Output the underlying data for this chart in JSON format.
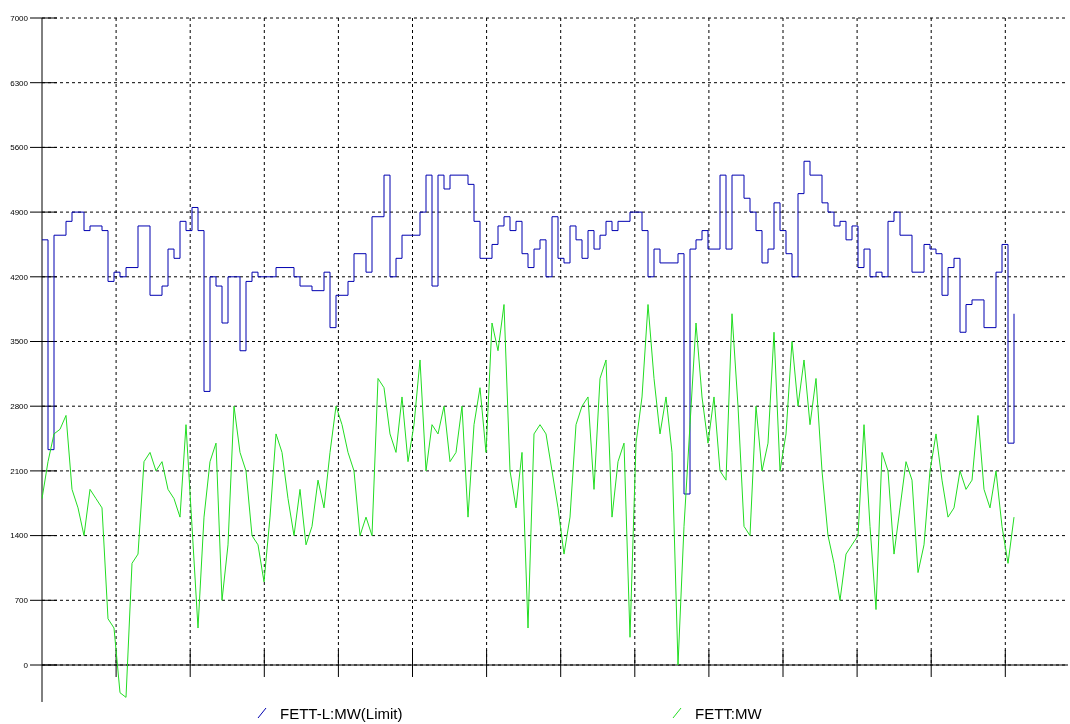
{
  "chart_data": {
    "type": "line",
    "ylim": [
      -400,
      7000
    ],
    "yticks": [
      0,
      700,
      1400,
      2100,
      2800,
      3500,
      4200,
      4900,
      5600,
      6300,
      7000
    ],
    "categories": [
      null,
      null,
      null,
      null,
      null,
      null,
      null,
      null,
      null,
      null,
      null,
      null,
      null,
      null,
      null,
      null,
      null,
      null,
      null,
      null,
      null,
      null,
      null,
      null,
      null,
      null,
      null,
      null,
      null,
      null,
      null,
      null,
      null,
      null,
      null,
      null,
      null,
      null,
      null,
      null,
      null,
      null,
      null,
      null,
      null,
      null,
      null,
      null,
      null,
      null,
      null,
      null,
      null,
      null,
      null,
      null,
      null,
      null,
      null,
      null,
      null,
      null,
      null,
      null,
      null,
      null,
      null,
      null,
      null,
      null,
      null,
      null,
      null,
      null,
      null,
      null,
      null,
      null,
      null,
      null,
      null,
      null,
      null,
      null,
      null,
      null,
      null,
      null,
      null,
      null,
      null,
      null,
      null,
      null,
      null,
      null,
      null,
      null,
      null,
      null,
      null,
      null,
      null,
      null,
      null,
      null,
      null,
      null,
      null,
      null,
      null,
      null,
      null,
      null,
      null,
      null,
      null,
      null,
      null,
      null,
      null,
      null,
      null,
      null,
      null,
      null,
      null,
      null,
      null,
      null,
      null,
      null,
      null,
      null,
      null,
      null,
      null,
      null,
      null,
      null,
      null,
      null,
      null,
      null,
      null,
      null,
      null,
      null,
      null,
      null,
      null,
      null,
      null,
      null,
      null,
      null,
      null,
      null,
      null,
      null,
      null,
      null,
      null
    ],
    "tick_labels": "y",
    "grid": true,
    "legend": "bottom",
    "marker": "none",
    "line_style": "solid",
    "series": [
      {
        "name": "FETT-L:MW(Limit)",
        "type": "step",
        "color": "#0000b0",
        "values": [
          4600,
          2330,
          4650,
          4650,
          4800,
          4900,
          4900,
          4700,
          4750,
          4750,
          4700,
          4150,
          4250,
          4200,
          4300,
          4300,
          4750,
          4750,
          4000,
          4000,
          4100,
          4500,
          4400,
          4800,
          4700,
          4950,
          4700,
          2960,
          4200,
          4100,
          3700,
          4200,
          4200,
          3400,
          4150,
          4250,
          4200,
          4200,
          4200,
          4300,
          4300,
          4300,
          4200,
          4100,
          4100,
          4050,
          4050,
          4250,
          3650,
          4000,
          4000,
          4150,
          4450,
          4450,
          4250,
          4850,
          4850,
          5300,
          4200,
          4400,
          4650,
          4650,
          4650,
          4900,
          5300,
          4100,
          5300,
          5150,
          5300,
          5300,
          5300,
          5200,
          4800,
          4400,
          4400,
          4550,
          4750,
          4850,
          4700,
          4800,
          4450,
          4300,
          4500,
          4600,
          4200,
          4850,
          4400,
          4350,
          4750,
          4600,
          4400,
          4700,
          4500,
          4650,
          4800,
          4700,
          4800,
          4800,
          4900,
          4900,
          4700,
          4200,
          4500,
          4350,
          4350,
          4350,
          4450,
          1850,
          4500,
          4600,
          4700,
          4500,
          4500,
          5300,
          4500,
          5300,
          5300,
          5050,
          4900,
          4700,
          4350,
          4500,
          5000,
          4700,
          4450,
          4200,
          5100,
          5450,
          5300,
          5300,
          5000,
          4900,
          4750,
          4800,
          4600,
          4750,
          4300,
          4500,
          4200,
          4250,
          4200,
          4800,
          4900,
          4650,
          4650,
          4250,
          4250,
          4550,
          4500,
          4450,
          4000,
          4300,
          4400,
          3600,
          3900,
          3950,
          3950,
          3650,
          3650,
          4250,
          4550,
          2400,
          3800
        ]
      },
      {
        "name": "FETT:MW",
        "type": "line",
        "color": "#22dd22",
        "values": [
          1800,
          2200,
          2500,
          2550,
          2700,
          1900,
          1700,
          1400,
          1900,
          1800,
          1700,
          500,
          400,
          -300,
          -350,
          1100,
          1200,
          2200,
          2300,
          2100,
          2200,
          1900,
          1800,
          1600,
          2600,
          1500,
          400,
          1600,
          2200,
          2400,
          700,
          1300,
          2800,
          2300,
          2100,
          1400,
          1300,
          900,
          1600,
          2500,
          2300,
          1800,
          1400,
          1900,
          1300,
          1500,
          2000,
          1700,
          2300,
          2800,
          2600,
          2300,
          2100,
          1400,
          1600,
          1400,
          3100,
          3000,
          2500,
          2300,
          2900,
          2200,
          2600,
          3300,
          2100,
          2600,
          2500,
          2800,
          2200,
          2300,
          2800,
          1600,
          2600,
          3000,
          2300,
          3700,
          3400,
          3900,
          2100,
          1700,
          2300,
          400,
          2500,
          2600,
          2500,
          2100,
          1700,
          1200,
          1600,
          2600,
          2800,
          2900,
          1900,
          3100,
          3300,
          1600,
          2200,
          2400,
          300,
          2400,
          2900,
          3900,
          3100,
          2500,
          2900,
          2300,
          0,
          1500,
          2600,
          3700,
          2900,
          2400,
          2900,
          2100,
          2000,
          3800,
          2800,
          1500,
          1400,
          2800,
          2100,
          2400,
          3600,
          2100,
          2500,
          3500,
          2800,
          3300,
          2600,
          3100,
          2100,
          1400,
          1100,
          700,
          1200,
          1300,
          1400,
          2600,
          1500,
          600,
          2300,
          2100,
          1200,
          1700,
          2200,
          2000,
          1000,
          1300,
          2100,
          2500,
          2000,
          1600,
          1700,
          2100,
          1900,
          2000,
          2700,
          1900,
          1700,
          2100,
          1500,
          1100,
          1600
        ]
      }
    ]
  }
}
